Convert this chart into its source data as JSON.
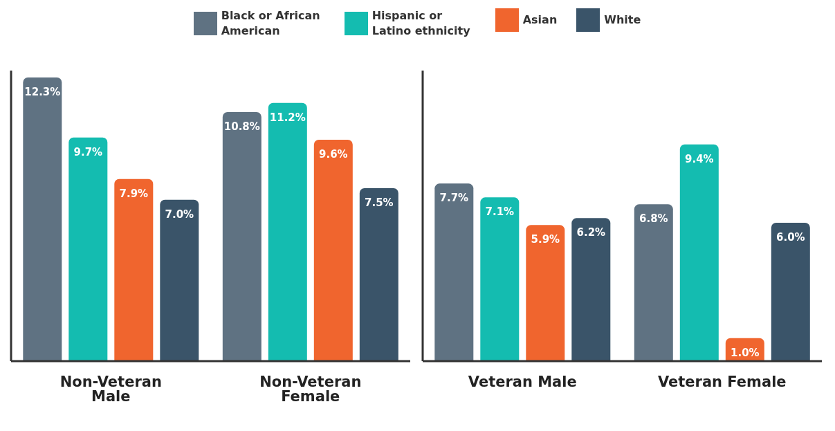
{
  "chart_data": [
    {
      "type": "bar",
      "categories": [
        "Non-Veteran Male",
        "Non-Veteran Female"
      ],
      "ylim": [
        0,
        12.6
      ],
      "legend": "top",
      "tick_labels": "x",
      "grid": false,
      "series": [
        {
          "name": "Black or African American",
          "color": "#5f7282",
          "values": [
            12.3,
            10.8
          ],
          "value_labels": [
            "12.3%",
            "10.8%"
          ]
        },
        {
          "name": "Hispanic or Latino ethnicity",
          "color": "#14bcb0",
          "values": [
            9.7,
            11.2
          ],
          "value_labels": [
            "9.7%",
            "11.2%"
          ]
        },
        {
          "name": "Asian",
          "color": "#f0652e",
          "values": [
            7.9,
            9.6
          ],
          "value_labels": [
            "7.9%",
            "9.6%"
          ]
        },
        {
          "name": "White",
          "color": "#3a5469",
          "values": [
            7.0,
            7.5
          ],
          "value_labels": [
            "7.0%",
            "7.5%"
          ]
        }
      ]
    },
    {
      "type": "bar",
      "categories": [
        "Veteran Male",
        "Veteran Female"
      ],
      "ylim": [
        0,
        12.6
      ],
      "tick_labels": "x",
      "grid": false,
      "series": [
        {
          "color": "#5f7282",
          "values": [
            7.7,
            6.8
          ],
          "value_labels": [
            "7.7%",
            "6.8%"
          ]
        },
        {
          "color": "#14bcb0",
          "values": [
            7.1,
            9.4
          ],
          "value_labels": [
            "7.1%",
            "9.4%"
          ]
        },
        {
          "color": "#f0652e",
          "values": [
            5.9,
            1.0
          ],
          "value_labels": [
            "5.9%",
            "1.0%"
          ]
        },
        {
          "color": "#3a5469",
          "values": [
            6.2,
            6.0
          ],
          "value_labels": [
            "6.2%",
            "6.0%"
          ]
        }
      ]
    }
  ]
}
